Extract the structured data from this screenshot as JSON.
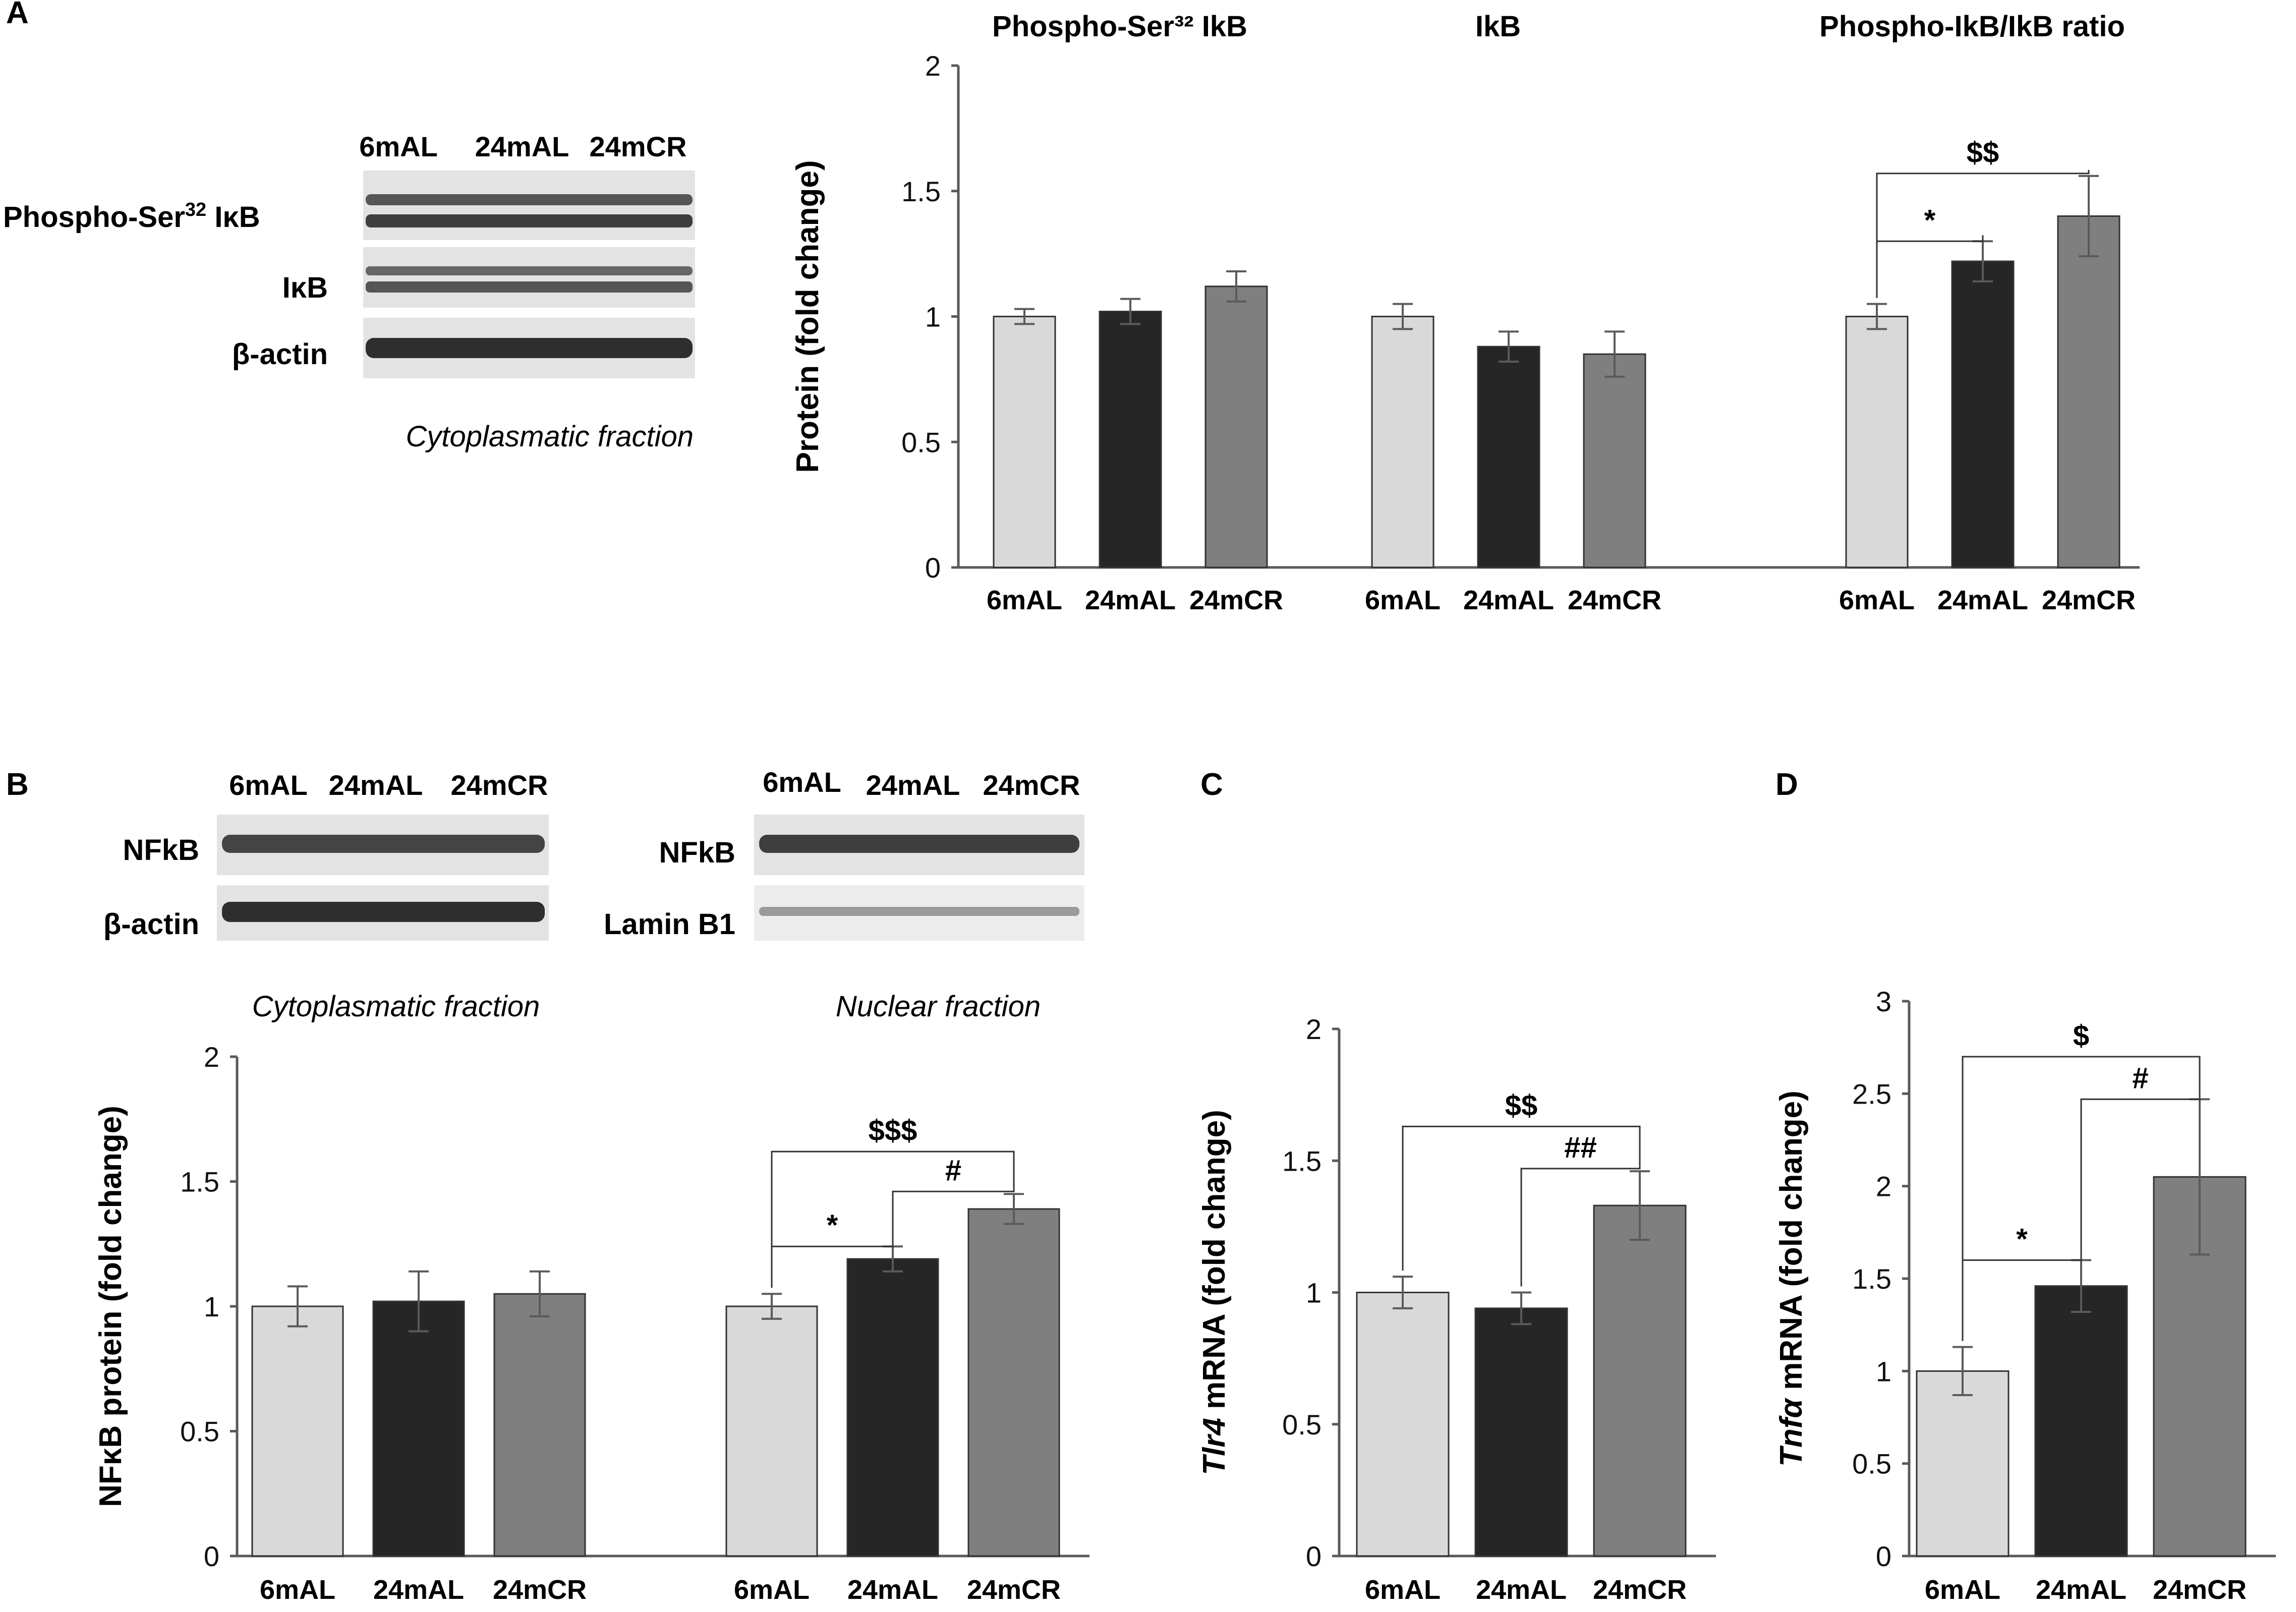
{
  "colors": {
    "c6mAL": "#d9d9d9",
    "c24mAL": "#262626",
    "c24mCR": "#7f7f7f",
    "axis": "#595959",
    "blot_bg": "#e6e6e6",
    "band": "#3a3a3a"
  },
  "panels": {
    "A": "A",
    "B": "B",
    "C": "C",
    "D": "D"
  },
  "blot_A": {
    "lanes": [
      "6mAL",
      "24mAL",
      "24mCR"
    ],
    "row_labels": {
      "phospho_prefix": "Phospho-Ser",
      "phospho_sup": "32",
      "phospho_suffix": " IκB",
      "ikb": "IκB",
      "actin": "β-actin"
    },
    "fraction": "Cytoplasmatic fraction"
  },
  "blot_B_cyto": {
    "lanes": [
      "6mAL",
      "24mAL",
      "24mCR"
    ],
    "row_labels": [
      "NFkB",
      "β-actin"
    ]
  },
  "blot_B_nuc": {
    "lanes": [
      "6mAL",
      "24mAL",
      "24mCR"
    ],
    "row_labels": [
      "NFkB",
      "Lamin B1"
    ]
  },
  "chart_data": [
    {
      "id": "A",
      "type": "bar",
      "ylabel": "Protein (fold change)",
      "ylim": [
        0,
        2
      ],
      "yticks": [
        "0",
        "0.5",
        "1",
        "1.5",
        "2"
      ],
      "groups": [
        {
          "title": "Phospho-Ser³² IkB",
          "categories": [
            "6mAL",
            "24mAL",
            "24mCR"
          ],
          "values": [
            1.0,
            1.02,
            1.12
          ],
          "errors": [
            0.03,
            0.05,
            0.06
          ]
        },
        {
          "title": "IkB",
          "categories": [
            "6mAL",
            "24mAL",
            "24mCR"
          ],
          "values": [
            1.0,
            0.88,
            0.85
          ],
          "errors": [
            0.05,
            0.06,
            0.09
          ]
        },
        {
          "title": "Phospho-IkB/IkB ratio",
          "categories": [
            "6mAL",
            "24mAL",
            "24mCR"
          ],
          "values": [
            1.0,
            1.22,
            1.4
          ],
          "errors": [
            0.05,
            0.08,
            0.16
          ]
        }
      ],
      "significance": [
        {
          "group": 2,
          "from": 0,
          "to": 1,
          "label": "*",
          "height": 1.3
        },
        {
          "group": 2,
          "from": 0,
          "to": 2,
          "label": "$$",
          "height": 1.57
        }
      ]
    },
    {
      "id": "B",
      "type": "bar",
      "ylabel": "NFκB protein (fold change)",
      "ylim": [
        0,
        2
      ],
      "yticks": [
        "0",
        "0.5",
        "1",
        "1.5",
        "2"
      ],
      "groups": [
        {
          "title": "Cytoplasmatic fraction",
          "categories": [
            "6mAL",
            "24mAL",
            "24mCR"
          ],
          "values": [
            1.0,
            1.02,
            1.05
          ],
          "errors": [
            0.08,
            0.12,
            0.09
          ]
        },
        {
          "title": "Nuclear fraction",
          "categories": [
            "6mAL",
            "24mAL",
            "24mCR"
          ],
          "values": [
            1.0,
            1.19,
            1.39
          ],
          "errors": [
            0.05,
            0.05,
            0.06
          ]
        }
      ],
      "significance": [
        {
          "group": 1,
          "from": 0,
          "to": 1,
          "label": "*",
          "height": 1.24
        },
        {
          "group": 1,
          "from": 1,
          "to": 2,
          "label": "#",
          "height": 1.46
        },
        {
          "group": 1,
          "from": 0,
          "to": 2,
          "label": "$$$",
          "height": 1.62
        }
      ]
    },
    {
      "id": "C",
      "type": "bar",
      "ylabel_italic": "Tlr4",
      "ylabel_rest": " mRNA (fold change)",
      "ylim": [
        0,
        2
      ],
      "yticks": [
        "0",
        "0.5",
        "1",
        "1.5",
        "2"
      ],
      "groups": [
        {
          "title": "",
          "categories": [
            "6mAL",
            "24mAL",
            "24mCR"
          ],
          "values": [
            1.0,
            0.94,
            1.33
          ],
          "errors": [
            0.06,
            0.06,
            0.13
          ]
        }
      ],
      "significance": [
        {
          "group": 0,
          "from": 1,
          "to": 2,
          "label": "##",
          "height": 1.47
        },
        {
          "group": 0,
          "from": 0,
          "to": 2,
          "label": "$$",
          "height": 1.63
        }
      ]
    },
    {
      "id": "D",
      "type": "bar",
      "ylabel_italic": "Tnfα",
      "ylabel_rest": " mRNA (fold change)",
      "ylim": [
        0,
        3
      ],
      "yticks": [
        "0",
        "0.5",
        "1",
        "1.5",
        "2",
        "2.5",
        "3"
      ],
      "groups": [
        {
          "title": "",
          "categories": [
            "6mAL",
            "24mAL",
            "24mCR"
          ],
          "values": [
            1.0,
            1.46,
            2.05
          ],
          "errors": [
            0.13,
            0.14,
            0.42
          ]
        }
      ],
      "significance": [
        {
          "group": 0,
          "from": 0,
          "to": 1,
          "label": "*",
          "height": 1.6
        },
        {
          "group": 0,
          "from": 1,
          "to": 2,
          "label": "#",
          "height": 2.47
        },
        {
          "group": 0,
          "from": 0,
          "to": 2,
          "label": "$",
          "height": 2.7
        }
      ]
    }
  ]
}
